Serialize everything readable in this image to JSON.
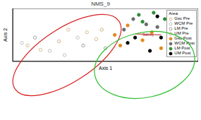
{
  "chart_data": {
    "type": "scatter",
    "title": "NMS_9",
    "x_label": "Axis 1",
    "y_label": "Axis 2",
    "xlim": [
      0,
      100
    ],
    "ylim": [
      0,
      100
    ],
    "tick_labels": false,
    "legend": "upper right",
    "legend_title": "Area",
    "series": [
      {
        "name": "Gsc Pre",
        "color": "#d4b483",
        "marker": "open_circle",
        "x": [
          8,
          15,
          30,
          40,
          45
        ],
        "y": [
          30,
          22,
          60,
          55,
          42
        ]
      },
      {
        "name": "WCM Pre",
        "color": "#bbbbbb",
        "marker": "open_circle",
        "x": [
          5,
          20,
          35,
          28
        ],
        "y": [
          35,
          20,
          45,
          12
        ]
      },
      {
        "name": "LM Pre",
        "color": "#999999",
        "marker": "open_circle",
        "x": [
          12,
          38,
          50
        ],
        "y": [
          45,
          30,
          25
        ]
      },
      {
        "name": "UM Pre",
        "color": "#c8a878",
        "marker": "open_circle",
        "x": [
          25,
          48
        ],
        "y": [
          38,
          60
        ]
      },
      {
        "name": "Gsc Post",
        "color": "#e08a1e",
        "marker": "circle",
        "x": [
          58,
          62,
          70,
          75,
          55,
          80
        ],
        "y": [
          30,
          68,
          40,
          55,
          50,
          25
        ]
      },
      {
        "name": "WCM Post",
        "color": "#6b6b6b",
        "marker": "circle",
        "x": [
          65,
          72,
          60,
          78
        ],
        "y": [
          80,
          70,
          60,
          65
        ]
      },
      {
        "name": "LM Post",
        "color": "#2e8b3a",
        "marker": "circle",
        "x": [
          68,
          76,
          70,
          82
        ],
        "y": [
          88,
          92,
          75,
          80
        ]
      },
      {
        "name": "UM Post",
        "color": "#000000",
        "marker": "circle",
        "x": [
          74,
          66,
          80,
          62,
          78
        ],
        "y": [
          20,
          45,
          45,
          35,
          85
        ]
      }
    ],
    "vectors": [
      {
        "name": "Salinity",
        "color": "#b22222",
        "x0": 66,
        "y0": 52,
        "x1": 80,
        "y1": 50
      }
    ]
  }
}
